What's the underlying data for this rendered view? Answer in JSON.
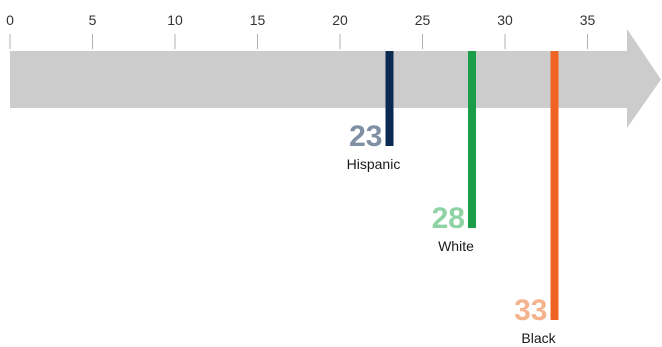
{
  "chart_data": {
    "type": "bar",
    "orientation": "markers-on-axis",
    "axis": {
      "min": 0,
      "max": 38,
      "ticks": [
        0,
        5,
        10,
        15,
        20,
        25,
        30,
        35
      ],
      "tick_labels": [
        "0",
        "5",
        "10",
        "15",
        "20",
        "25",
        "30",
        "35"
      ],
      "color": "#cccccc"
    },
    "categories": [
      "Hispanic",
      "White",
      "Black"
    ],
    "values": [
      23,
      28,
      33
    ],
    "value_labels": [
      "23",
      "28",
      "33"
    ],
    "colors": [
      "#0b2a52",
      "#1a9e4a",
      "#ef6424"
    ],
    "label_colors": [
      "#8090a4",
      "#8fd3a5",
      "#f4b38d"
    ]
  }
}
